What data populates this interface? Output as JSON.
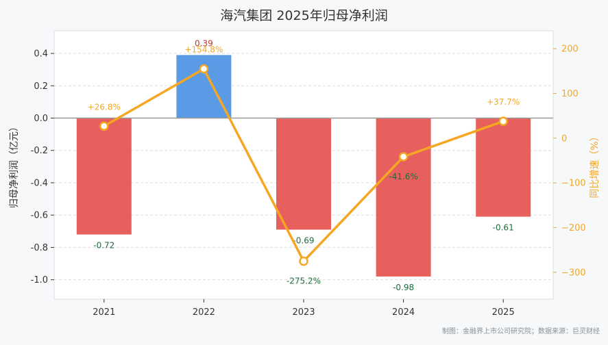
{
  "title": "海汽集团 2025年归母净利润",
  "source": "制图：金融界上市公司研究院；数据来源：巨灵财经",
  "chart_data": {
    "type": "bar",
    "title": "海汽集团 2025年归母净利润",
    "categories": [
      "2021",
      "2022",
      "2023",
      "2024",
      "2025"
    ],
    "series": [
      {
        "axis": "left",
        "type": "bar",
        "values": [
          -0.72,
          0.39,
          -0.69,
          -0.98,
          -0.61
        ],
        "value_labels": [
          "-0.72",
          "0.39",
          "-0.69",
          "-0.98",
          "-0.61"
        ]
      },
      {
        "axis": "right",
        "type": "line",
        "values": [
          26.8,
          154.8,
          -275.2,
          -41.6,
          37.7
        ],
        "value_labels": [
          "+26.8%",
          "+154.8%",
          "-275.2%",
          "-41.6%",
          "+37.7%"
        ]
      }
    ],
    "ylabel": "归母净利润（亿元）",
    "ylabel_right": "同比增速（%）",
    "ylim": [
      -1.12,
      0.54
    ],
    "ylim_right": [
      -360,
      240
    ],
    "yticks": [
      -1.0,
      -0.8,
      -0.6,
      -0.4,
      -0.2,
      0.0,
      0.2,
      0.4
    ],
    "ytick_labels": [
      "-1.0",
      "-0.8",
      "-0.6",
      "-0.4",
      "-0.2",
      "0.0",
      "0.2",
      "0.4"
    ],
    "yticks_right": [
      -300,
      -200,
      -100,
      0,
      100,
      200
    ],
    "ytick_labels_right": [
      "−300",
      "−200",
      "−100",
      "0",
      "100",
      "200"
    ],
    "grid": true,
    "colors": {
      "negative_bar": "#e8605e",
      "positive_bar": "#5b9be6",
      "line": "#f5a623",
      "positive_bar_label": "#c0392b",
      "negative_bar_label": "#1e6b3a",
      "growth_positive_label": "#f5a623",
      "growth_negative_label": "#1e6b3a",
      "zero_line": "#999999",
      "grid": "#dddddd",
      "plot_bg": "#ffffff",
      "page_bg": "#f6f8fa"
    }
  }
}
